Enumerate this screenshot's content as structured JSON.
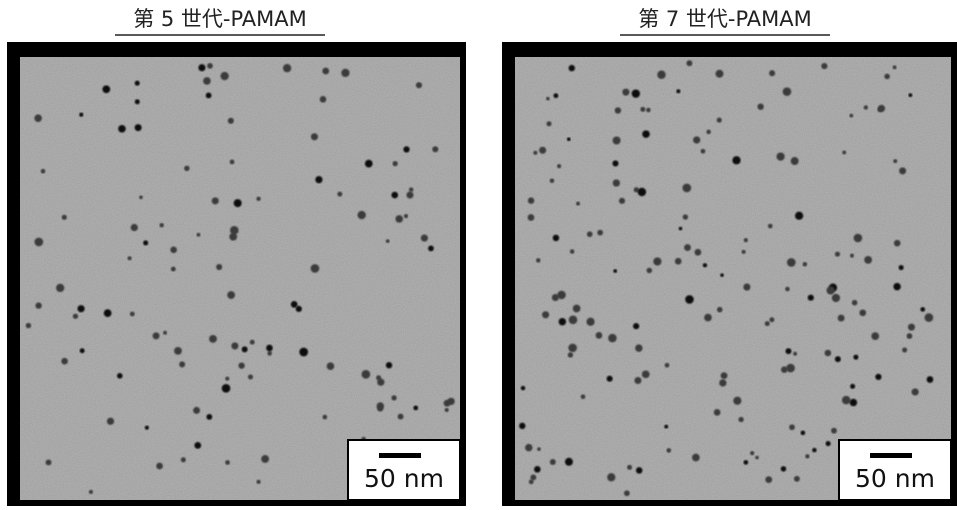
{
  "panels": [
    {
      "title": "第 5 世代-PAMAM",
      "scale_label": "50 nm"
    },
    {
      "title": "第 7 世代-PAMAM",
      "scale_label": "50 nm"
    }
  ]
}
